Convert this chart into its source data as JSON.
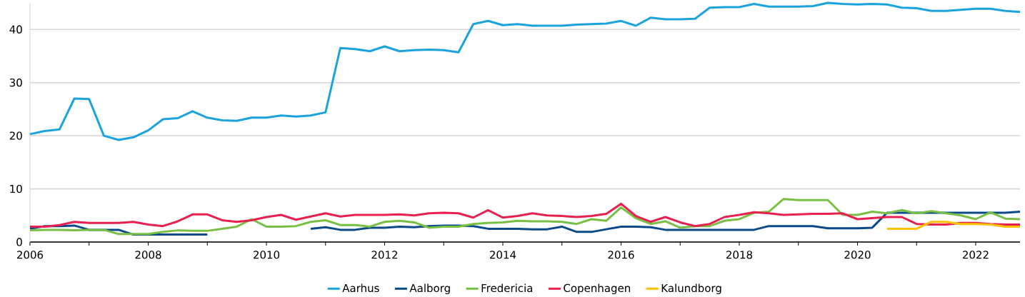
{
  "chart_data": {
    "type": "line",
    "x": [
      2006,
      2006.25,
      2006.5,
      2006.75,
      2007,
      2007.25,
      2007.5,
      2007.75,
      2008,
      2008.25,
      2008.5,
      2008.75,
      2009,
      2009.25,
      2009.5,
      2009.75,
      2010,
      2010.25,
      2010.5,
      2010.75,
      2011,
      2011.25,
      2011.5,
      2011.75,
      2012,
      2012.25,
      2012.5,
      2012.75,
      2013,
      2013.25,
      2013.5,
      2013.75,
      2014,
      2014.25,
      2014.5,
      2014.75,
      2015,
      2015.25,
      2015.5,
      2015.75,
      2016,
      2016.25,
      2016.5,
      2016.75,
      2017,
      2017.25,
      2017.5,
      2017.75,
      2018,
      2018.25,
      2018.5,
      2018.75,
      2019,
      2019.25,
      2019.5,
      2019.75,
      2020,
      2020.25,
      2020.5,
      2020.75,
      2021,
      2021.25,
      2021.5,
      2021.75,
      2022,
      2022.25,
      2022.5,
      2022.75
    ],
    "series": [
      {
        "name": "Aarhus",
        "color": "#1ba3dd",
        "values": [
          20.3,
          20.9,
          21.2,
          27.0,
          26.9,
          20.0,
          19.2,
          19.7,
          21.0,
          23.1,
          23.3,
          24.6,
          23.4,
          22.9,
          22.8,
          23.4,
          23.4,
          23.8,
          23.6,
          23.8,
          24.4,
          36.5,
          36.3,
          35.9,
          36.8,
          35.9,
          36.1,
          36.2,
          36.1,
          35.7,
          41.0,
          41.6,
          40.8,
          41.0,
          40.7,
          40.7,
          40.7,
          40.9,
          41.0,
          41.1,
          41.6,
          40.7,
          42.2,
          41.9,
          41.9,
          42.0,
          44.1,
          44.2,
          44.2,
          44.8,
          44.3,
          44.3,
          44.3,
          44.4,
          45.0,
          44.8,
          44.7,
          44.8,
          44.7,
          44.1,
          44.0,
          43.5,
          43.5,
          43.7,
          43.9,
          43.9,
          43.5,
          43.3
        ]
      },
      {
        "name": "Aalborg",
        "color": "#0a4a8a",
        "values": [
          2.5,
          3.0,
          3.0,
          3.1,
          2.3,
          2.3,
          2.3,
          1.4,
          1.4,
          1.4,
          1.4,
          1.4,
          1.4,
          null,
          null,
          null,
          null,
          null,
          null,
          2.5,
          2.8,
          2.3,
          2.3,
          2.7,
          2.7,
          2.9,
          2.8,
          3.0,
          3.1,
          3.1,
          3.0,
          2.5,
          2.5,
          2.5,
          2.4,
          2.4,
          2.9,
          1.9,
          1.9,
          2.4,
          2.9,
          2.9,
          2.8,
          2.3,
          2.3,
          2.3,
          2.3,
          2.3,
          2.3,
          2.3,
          3.0,
          3.0,
          3.0,
          3.0,
          2.6,
          2.6,
          2.6,
          2.7,
          5.5,
          5.5,
          5.5,
          5.5,
          5.5,
          5.5,
          5.5,
          5.5,
          5.5,
          5.7
        ]
      },
      {
        "name": "Fredericia",
        "color": "#78c043",
        "values": [
          2.2,
          2.3,
          2.3,
          2.2,
          2.3,
          2.3,
          1.5,
          1.5,
          1.5,
          1.9,
          2.2,
          2.1,
          2.1,
          2.5,
          2.9,
          4.3,
          2.9,
          2.9,
          3.0,
          3.8,
          4.1,
          3.2,
          3.2,
          2.9,
          3.8,
          4.0,
          3.7,
          2.7,
          2.9,
          2.9,
          3.4,
          3.6,
          3.7,
          4.0,
          3.9,
          3.9,
          3.8,
          3.4,
          4.3,
          4.0,
          6.5,
          4.5,
          3.4,
          3.9,
          2.7,
          3.0,
          3.0,
          4.0,
          4.3,
          5.5,
          5.7,
          8.1,
          7.9,
          7.9,
          7.9,
          5.1,
          5.1,
          5.7,
          5.4,
          6.0,
          5.4,
          5.8,
          5.4,
          5.0,
          4.3,
          5.6,
          4.4,
          4.3
        ]
      },
      {
        "name": "Copenhagen",
        "color": "#e8204f",
        "values": [
          2.9,
          2.9,
          3.2,
          3.8,
          3.6,
          3.6,
          3.6,
          3.8,
          3.3,
          3.0,
          3.9,
          5.2,
          5.2,
          4.1,
          3.8,
          4.1,
          4.7,
          5.1,
          4.2,
          4.8,
          5.4,
          4.8,
          5.1,
          5.1,
          5.1,
          5.2,
          5.0,
          5.4,
          5.5,
          5.4,
          4.6,
          6.0,
          4.6,
          4.9,
          5.4,
          5.0,
          4.9,
          4.7,
          4.9,
          5.3,
          7.2,
          4.9,
          3.8,
          4.7,
          3.7,
          3.0,
          3.4,
          4.7,
          5.1,
          5.6,
          5.4,
          5.1,
          5.2,
          5.3,
          5.3,
          5.4,
          4.3,
          4.5,
          4.7,
          4.7,
          3.4,
          3.3,
          3.3,
          3.6,
          3.6,
          3.4,
          3.3,
          3.3
        ]
      },
      {
        "name": "Kalundborg",
        "color": "#ffc000",
        "values": [
          null,
          null,
          null,
          null,
          null,
          null,
          null,
          null,
          null,
          null,
          null,
          null,
          null,
          null,
          null,
          null,
          null,
          null,
          null,
          null,
          null,
          null,
          null,
          null,
          null,
          null,
          null,
          null,
          null,
          null,
          null,
          null,
          null,
          null,
          null,
          null,
          null,
          null,
          null,
          null,
          null,
          null,
          null,
          null,
          null,
          null,
          null,
          null,
          null,
          null,
          null,
          null,
          null,
          null,
          null,
          null,
          null,
          null,
          2.5,
          2.5,
          2.5,
          3.8,
          3.8,
          3.4,
          3.4,
          3.3,
          2.9,
          2.9
        ]
      }
    ],
    "xlim": [
      2006,
      2022.75
    ],
    "xticks": [
      2006,
      {
        "value": 2007,
        "label": null
      },
      2008,
      {
        "value": 2009,
        "label": null
      },
      2010,
      {
        "value": 2011,
        "label": null
      },
      2012,
      {
        "value": 2013,
        "label": null
      },
      2014,
      {
        "value": 2015,
        "label": null
      },
      2016,
      {
        "value": 2017,
        "label": null
      },
      2018,
      {
        "value": 2019,
        "label": null
      },
      2020,
      {
        "value": 2021,
        "label": null
      },
      2022
    ],
    "ylim": [
      0,
      45
    ],
    "yticks": [
      0,
      10,
      20,
      30,
      40
    ],
    "grid": "y",
    "legend": "bottom",
    "marker": "none",
    "line_style": "solid"
  }
}
